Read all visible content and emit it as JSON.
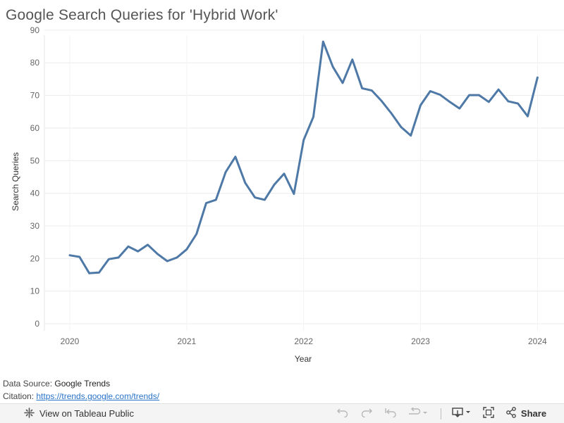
{
  "chart_data": {
    "type": "line",
    "title": "Google Search Queries for 'Hybrid Work'",
    "xlabel": "Year",
    "ylabel": "Search Queries",
    "ylim": [
      0,
      90
    ],
    "xlim": [
      "2019-10",
      "2024-02"
    ],
    "y_ticks": [
      "0",
      "10",
      "20",
      "30",
      "40",
      "50",
      "60",
      "70",
      "80",
      "90"
    ],
    "x_ticks": [
      "2020",
      "2021",
      "2022",
      "2023",
      "2024"
    ],
    "grid": true,
    "line_color": "#4e79a7",
    "series": [
      {
        "x": [
          "2020-01",
          "2020-02",
          "2020-03",
          "2020-04",
          "2020-05",
          "2020-06",
          "2020-07",
          "2020-08",
          "2020-09",
          "2020-10",
          "2020-11",
          "2020-12",
          "2021-01",
          "2021-02",
          "2021-03",
          "2021-04",
          "2021-05",
          "2021-06",
          "2021-07",
          "2021-08",
          "2021-09",
          "2021-10",
          "2021-11",
          "2021-12",
          "2022-01",
          "2022-02",
          "2022-03",
          "2022-04",
          "2022-05",
          "2022-06",
          "2022-07",
          "2022-08",
          "2022-09",
          "2022-10",
          "2022-11",
          "2022-12",
          "2023-01",
          "2023-02",
          "2023-03",
          "2023-04",
          "2023-05",
          "2023-06",
          "2023-07",
          "2023-08",
          "2023-09",
          "2023-10",
          "2023-11",
          "2023-12",
          "2024-01"
        ],
        "values": [
          21,
          20.5,
          15.5,
          15.7,
          19.8,
          20.3,
          23.7,
          22.2,
          24.2,
          21.4,
          19.2,
          20.3,
          22.8,
          27.5,
          37,
          38,
          46.5,
          51.2,
          43.2,
          38.7,
          38,
          42.7,
          46,
          39.8,
          56.3,
          63.4,
          86.5,
          78.8,
          73.8,
          81,
          72.2,
          71.5,
          68.3,
          64.5,
          60.3,
          57.7,
          67,
          71.3,
          70.2,
          68,
          66,
          70.1,
          70.1,
          68,
          71.8,
          68.2,
          67.5,
          63.6,
          75.5
        ]
      }
    ]
  },
  "source": {
    "label": "Data Source: ",
    "value": "Google Trends",
    "citation_label": "Citation: ",
    "citation_link": "https://trends.google.com/trends/"
  },
  "toolbar": {
    "view_label": "View on Tableau Public",
    "share_label": "Share",
    "icons": [
      "tableau-icon",
      "undo-icon",
      "redo-icon",
      "revert-icon",
      "refresh-icon",
      "download-icon",
      "fullscreen-icon",
      "share-icon"
    ]
  }
}
